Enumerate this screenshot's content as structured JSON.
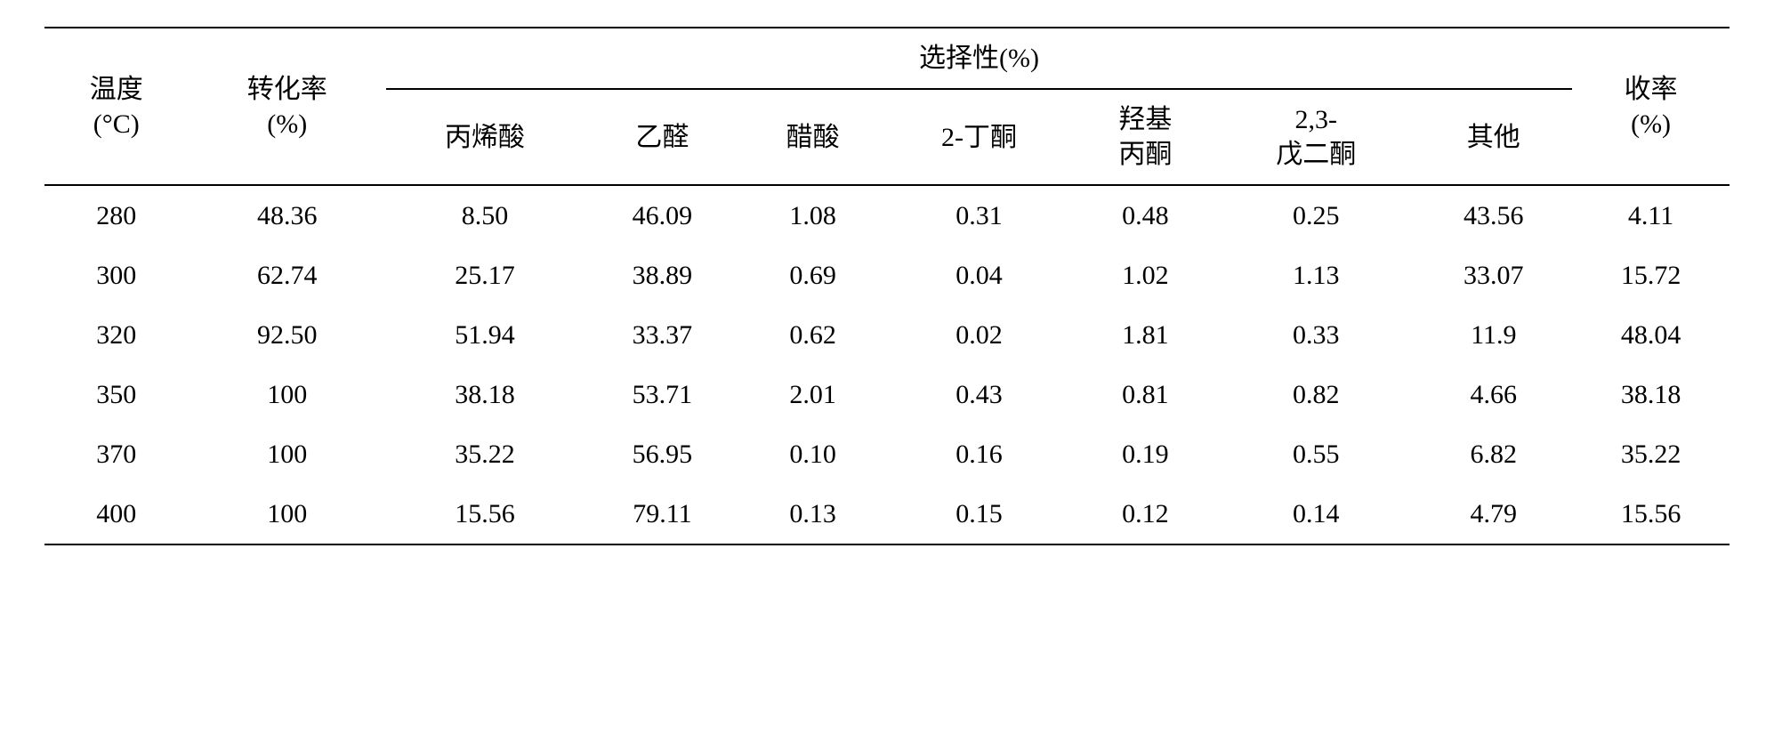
{
  "table": {
    "type": "table",
    "background_color": "#ffffff",
    "text_color": "#000000",
    "border_color": "#000000",
    "font_family": "Songti SC, SimSun, serif",
    "header_fontsize": 30,
    "cell_fontsize": 30,
    "headers": {
      "temperature": "温度\n(°C)",
      "temperature_line1": "温度",
      "temperature_line2": "(°C)",
      "conversion": "转化率\n(%)",
      "conversion_line1": "转化率",
      "conversion_line2": "(%)",
      "selectivity_group": "选择性(%)",
      "yield": "收率\n(%)",
      "yield_line1": "收率",
      "yield_line2": "(%)",
      "selectivity_cols": {
        "acrylic_acid": "丙烯酸",
        "acetaldehyde": "乙醛",
        "acetic_acid": "醋酸",
        "butanone": "2-丁酮",
        "hydroxyacetone_line1": "羟基",
        "hydroxyacetone_line2": "丙酮",
        "pentanedione_line1": "2,3-",
        "pentanedione_line2": "戊二酮",
        "other": "其他"
      }
    },
    "columns": [
      "temperature",
      "conversion",
      "acrylic_acid",
      "acetaldehyde",
      "acetic_acid",
      "butanone",
      "hydroxyacetone",
      "pentanedione",
      "other",
      "yield"
    ],
    "rows": [
      {
        "temperature": "280",
        "conversion": "48.36",
        "acrylic_acid": "8.50",
        "acetaldehyde": "46.09",
        "acetic_acid": "1.08",
        "butanone": "0.31",
        "hydroxyacetone": "0.48",
        "pentanedione": "0.25",
        "other": "43.56",
        "yield": "4.11"
      },
      {
        "temperature": "300",
        "conversion": "62.74",
        "acrylic_acid": "25.17",
        "acetaldehyde": "38.89",
        "acetic_acid": "0.69",
        "butanone": "0.04",
        "hydroxyacetone": "1.02",
        "pentanedione": "1.13",
        "other": "33.07",
        "yield": "15.72"
      },
      {
        "temperature": "320",
        "conversion": "92.50",
        "acrylic_acid": "51.94",
        "acetaldehyde": "33.37",
        "acetic_acid": "0.62",
        "butanone": "0.02",
        "hydroxyacetone": "1.81",
        "pentanedione": "0.33",
        "other": "11.9",
        "yield": "48.04"
      },
      {
        "temperature": "350",
        "conversion": "100",
        "acrylic_acid": "38.18",
        "acetaldehyde": "53.71",
        "acetic_acid": "2.01",
        "butanone": "0.43",
        "hydroxyacetone": "0.81",
        "pentanedione": "0.82",
        "other": "4.66",
        "yield": "38.18"
      },
      {
        "temperature": "370",
        "conversion": "100",
        "acrylic_acid": "35.22",
        "acetaldehyde": "56.95",
        "acetic_acid": "0.10",
        "butanone": "0.16",
        "hydroxyacetone": "0.19",
        "pentanedione": "0.55",
        "other": "6.82",
        "yield": "35.22"
      },
      {
        "temperature": "400",
        "conversion": "100",
        "acrylic_acid": "15.56",
        "acetaldehyde": "79.11",
        "acetic_acid": "0.13",
        "butanone": "0.15",
        "hydroxyacetone": "0.12",
        "pentanedione": "0.14",
        "other": "4.79",
        "yield": "15.56"
      }
    ]
  }
}
